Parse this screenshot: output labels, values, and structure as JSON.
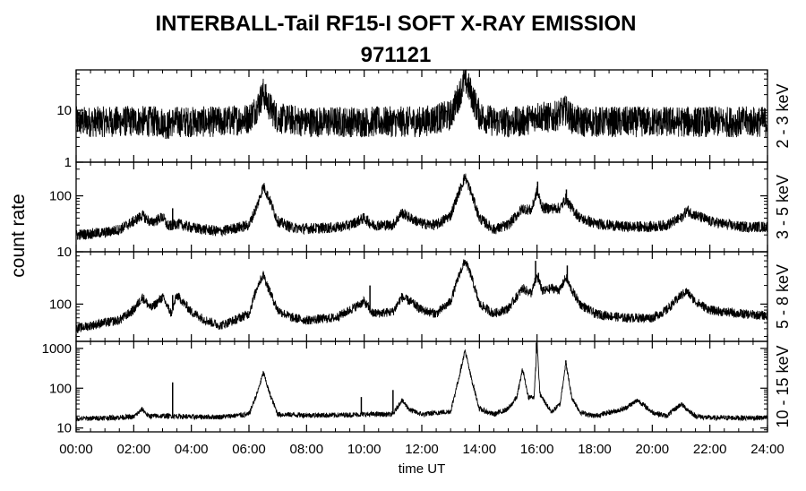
{
  "chart_data": {
    "type": "line",
    "title": "INTERBALL-Tail RF15-I SOFT X-RAY EMISSION",
    "subtitle": "971121",
    "xlabel": "time UT",
    "ylabel": "count rate",
    "x_ticks": [
      "00:00",
      "02:00",
      "04:00",
      "06:00",
      "08:00",
      "10:00",
      "12:00",
      "14:00",
      "16:00",
      "18:00",
      "20:00",
      "22:00",
      "24:00"
    ],
    "x_range_hours": [
      0,
      24
    ],
    "y_scale": "log",
    "colors": {
      "line": "#000000",
      "background": "#ffffff",
      "axes": "#000000"
    },
    "panels": [
      {
        "name": "2 - 3 keV",
        "ylim": [
          1,
          60
        ],
        "y_ticks": [
          {
            "v": 1,
            "label": "1"
          },
          {
            "v": 10,
            "label": "10"
          }
        ],
        "noise": 0.55,
        "series": [
          [
            0.0,
            6
          ],
          [
            1.0,
            6
          ],
          [
            2.0,
            6.2
          ],
          [
            3.0,
            6
          ],
          [
            3.2,
            5
          ],
          [
            3.3,
            6
          ],
          [
            4.0,
            6
          ],
          [
            5.0,
            6
          ],
          [
            6.0,
            7
          ],
          [
            6.3,
            12
          ],
          [
            6.5,
            22
          ],
          [
            6.7,
            12
          ],
          [
            7.0,
            7
          ],
          [
            8.0,
            6
          ],
          [
            9.0,
            6
          ],
          [
            10.0,
            6
          ],
          [
            11.0,
            6
          ],
          [
            12.0,
            6
          ],
          [
            13.0,
            8
          ],
          [
            13.3,
            20
          ],
          [
            13.5,
            40
          ],
          [
            13.7,
            22
          ],
          [
            14.0,
            8
          ],
          [
            14.5,
            6
          ],
          [
            15.0,
            6
          ],
          [
            15.5,
            6
          ],
          [
            16.0,
            8
          ],
          [
            16.5,
            7
          ],
          [
            17.0,
            10
          ],
          [
            17.2,
            7
          ],
          [
            17.5,
            6
          ],
          [
            18.0,
            6
          ],
          [
            19.0,
            6
          ],
          [
            20.0,
            6
          ],
          [
            21.0,
            6
          ],
          [
            22.0,
            6
          ],
          [
            23.0,
            6
          ],
          [
            24.0,
            6
          ]
        ]
      },
      {
        "name": "3 - 5 keV",
        "ylim": [
          10,
          400
        ],
        "y_ticks": [
          {
            "v": 10,
            "label": "10"
          },
          {
            "v": 100,
            "label": "100"
          }
        ],
        "noise": 0.18,
        "series": [
          [
            0.0,
            20
          ],
          [
            1.0,
            22
          ],
          [
            1.5,
            25
          ],
          [
            2.0,
            35
          ],
          [
            2.3,
            45
          ],
          [
            2.6,
            33
          ],
          [
            3.0,
            42
          ],
          [
            3.2,
            28
          ],
          [
            3.5,
            32
          ],
          [
            4.0,
            27
          ],
          [
            5.0,
            23
          ],
          [
            6.0,
            30
          ],
          [
            6.3,
            70
          ],
          [
            6.5,
            150
          ],
          [
            6.7,
            90
          ],
          [
            7.0,
            35
          ],
          [
            7.5,
            27
          ],
          [
            8.0,
            26
          ],
          [
            9.0,
            27
          ],
          [
            9.5,
            30
          ],
          [
            10.0,
            40
          ],
          [
            10.3,
            30
          ],
          [
            11.0,
            30
          ],
          [
            11.3,
            50
          ],
          [
            11.6,
            40
          ],
          [
            12.0,
            32
          ],
          [
            12.5,
            30
          ],
          [
            13.0,
            45
          ],
          [
            13.3,
            120
          ],
          [
            13.5,
            220
          ],
          [
            13.7,
            120
          ],
          [
            14.0,
            40
          ],
          [
            14.5,
            25
          ],
          [
            15.0,
            30
          ],
          [
            15.5,
            60
          ],
          [
            15.8,
            55
          ],
          [
            16.0,
            120
          ],
          [
            16.2,
            60
          ],
          [
            16.5,
            60
          ],
          [
            16.8,
            60
          ],
          [
            17.0,
            90
          ],
          [
            17.2,
            60
          ],
          [
            17.5,
            40
          ],
          [
            18.0,
            32
          ],
          [
            19.0,
            28
          ],
          [
            20.0,
            28
          ],
          [
            20.5,
            30
          ],
          [
            21.0,
            40
          ],
          [
            21.2,
            55
          ],
          [
            21.5,
            45
          ],
          [
            22.0,
            35
          ],
          [
            23.0,
            28
          ],
          [
            24.0,
            28
          ]
        ]
      },
      {
        "name": "5 - 8 keV",
        "ylim": [
          25,
          700
        ],
        "y_ticks": [
          {
            "v": 100,
            "label": "100"
          }
        ],
        "noise": 0.14,
        "series": [
          [
            0.0,
            40
          ],
          [
            0.5,
            45
          ],
          [
            1.0,
            50
          ],
          [
            1.5,
            55
          ],
          [
            2.0,
            80
          ],
          [
            2.3,
            130
          ],
          [
            2.6,
            85
          ],
          [
            3.0,
            130
          ],
          [
            3.3,
            70
          ],
          [
            3.5,
            140
          ],
          [
            4.0,
            75
          ],
          [
            4.5,
            55
          ],
          [
            5.0,
            45
          ],
          [
            5.5,
            55
          ],
          [
            6.0,
            70
          ],
          [
            6.3,
            200
          ],
          [
            6.5,
            300
          ],
          [
            6.7,
            170
          ],
          [
            7.0,
            80
          ],
          [
            7.5,
            60
          ],
          [
            8.0,
            55
          ],
          [
            9.0,
            60
          ],
          [
            9.5,
            80
          ],
          [
            10.0,
            110
          ],
          [
            10.3,
            70
          ],
          [
            11.0,
            75
          ],
          [
            11.3,
            130
          ],
          [
            11.6,
            110
          ],
          [
            12.0,
            80
          ],
          [
            12.5,
            70
          ],
          [
            13.0,
            110
          ],
          [
            13.3,
            300
          ],
          [
            13.5,
            500
          ],
          [
            13.7,
            300
          ],
          [
            14.0,
            100
          ],
          [
            14.5,
            70
          ],
          [
            15.0,
            85
          ],
          [
            15.5,
            180
          ],
          [
            15.8,
            150
          ],
          [
            16.0,
            280
          ],
          [
            16.2,
            160
          ],
          [
            16.5,
            180
          ],
          [
            16.8,
            170
          ],
          [
            17.0,
            270
          ],
          [
            17.2,
            170
          ],
          [
            17.5,
            100
          ],
          [
            18.0,
            70
          ],
          [
            19.0,
            60
          ],
          [
            20.0,
            60
          ],
          [
            20.5,
            80
          ],
          [
            21.0,
            140
          ],
          [
            21.2,
            160
          ],
          [
            21.5,
            110
          ],
          [
            22.0,
            80
          ],
          [
            23.0,
            70
          ],
          [
            24.0,
            65
          ]
        ]
      },
      {
        "name": "10 - 15 keV",
        "ylim": [
          8,
          1500
        ],
        "y_ticks": [
          {
            "v": 10,
            "label": "10"
          },
          {
            "v": 100,
            "label": "100"
          },
          {
            "v": 1000,
            "label": "1000"
          }
        ],
        "noise": 0.12,
        "series": [
          [
            0.0,
            17
          ],
          [
            1.0,
            18
          ],
          [
            2.0,
            19
          ],
          [
            2.3,
            30
          ],
          [
            2.5,
            20
          ],
          [
            3.0,
            20
          ],
          [
            3.5,
            20
          ],
          [
            4.0,
            19
          ],
          [
            5.0,
            19
          ],
          [
            6.0,
            22
          ],
          [
            6.3,
            80
          ],
          [
            6.5,
            250
          ],
          [
            6.7,
            80
          ],
          [
            7.0,
            22
          ],
          [
            8.0,
            21
          ],
          [
            9.0,
            21
          ],
          [
            10.0,
            22
          ],
          [
            11.0,
            22
          ],
          [
            11.3,
            50
          ],
          [
            11.6,
            28
          ],
          [
            12.0,
            22
          ],
          [
            13.0,
            26
          ],
          [
            13.3,
            200
          ],
          [
            13.5,
            900
          ],
          [
            13.7,
            200
          ],
          [
            14.0,
            30
          ],
          [
            14.5,
            22
          ],
          [
            15.0,
            30
          ],
          [
            15.3,
            60
          ],
          [
            15.5,
            300
          ],
          [
            15.7,
            60
          ],
          [
            15.9,
            60
          ],
          [
            16.0,
            1400
          ],
          [
            16.1,
            70
          ],
          [
            16.5,
            25
          ],
          [
            16.8,
            40
          ],
          [
            17.0,
            450
          ],
          [
            17.2,
            60
          ],
          [
            17.5,
            25
          ],
          [
            18.0,
            20
          ],
          [
            19.0,
            30
          ],
          [
            19.5,
            50
          ],
          [
            20.0,
            25
          ],
          [
            20.5,
            20
          ],
          [
            21.0,
            40
          ],
          [
            21.2,
            30
          ],
          [
            21.5,
            20
          ],
          [
            22.0,
            18
          ],
          [
            23.0,
            18
          ],
          [
            24.0,
            18
          ]
        ]
      }
    ],
    "spikes": [
      [
        [
          3.35,
          6
        ],
        [
          17.0,
          14
        ]
      ],
      [
        [
          3.35,
          60
        ],
        [
          16.02,
          180
        ],
        [
          17.02,
          130
        ]
      ],
      [
        [
          3.35,
          140
        ],
        [
          10.2,
          200
        ],
        [
          15.95,
          500
        ],
        [
          16.05,
          320
        ],
        [
          17.05,
          420
        ]
      ],
      [
        [
          3.35,
          140
        ],
        [
          9.9,
          60
        ],
        [
          11.0,
          90
        ],
        [
          15.98,
          1400
        ],
        [
          17.0,
          500
        ]
      ]
    ]
  }
}
